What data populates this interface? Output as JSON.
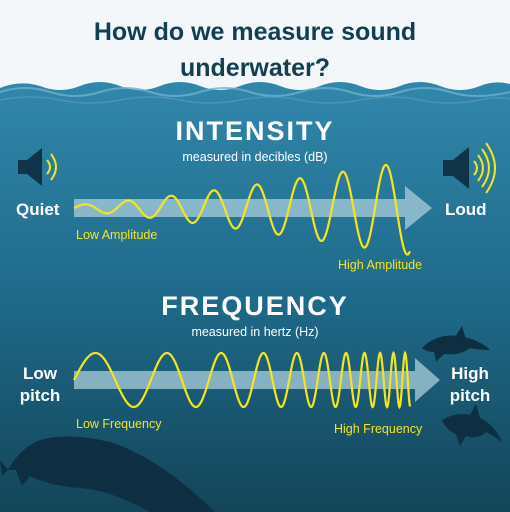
{
  "title": {
    "line1": "How do we measure sound",
    "line2": "underwater?"
  },
  "intensity": {
    "heading": "INTENSITY",
    "subheading": "measured in decibles (dB)",
    "left_label": "Quiet",
    "right_label": "Loud",
    "wave_start_label": "Low Amplitude",
    "wave_end_label": "High Amplitude"
  },
  "frequency": {
    "heading": "FREQUENCY",
    "subheading": "measured in hertz (Hz)",
    "left_label_line1": "Low",
    "left_label_line2": "pitch",
    "right_label_line1": "High",
    "right_label_line2": "pitch",
    "wave_start_label": "Low Frequency",
    "wave_end_label": "High Frequency"
  },
  "icons": [
    "speaker-quiet-icon",
    "speaker-loud-icon",
    "dolphin-icon",
    "dolphin-icon",
    "whale-icon"
  ],
  "colors": {
    "sky": "#f4f7f9",
    "ocean_top": "#2c7fa3",
    "ocean_bottom": "#14495f",
    "wave": "#f4e51e",
    "arrow": "#a9cddb",
    "title_text": "#123f52",
    "silhouette": "#0d2f41"
  }
}
